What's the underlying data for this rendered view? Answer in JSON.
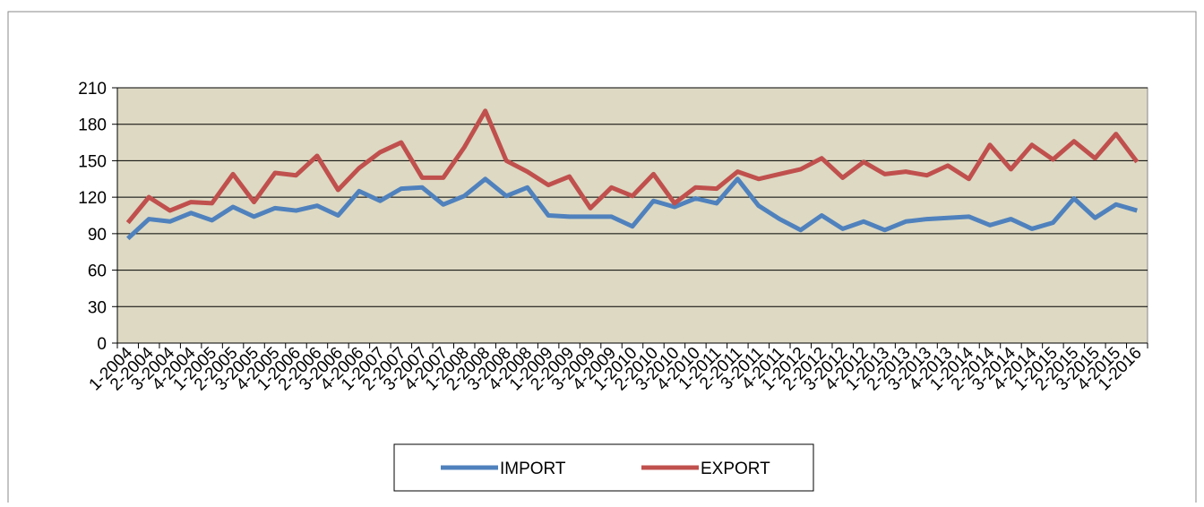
{
  "chart_data": {
    "type": "line",
    "categories": [
      "1-2004",
      "2-2004",
      "3-2004",
      "4-2004",
      "1-2005",
      "2-2005",
      "3-2005",
      "4-2005",
      "1-2006",
      "2-2006",
      "3-2006",
      "4-2006",
      "1-2007",
      "2-2007",
      "3-2007",
      "4-2007",
      "1-2008",
      "2-2008",
      "3-2008",
      "4-2008",
      "1-2009",
      "2-2009",
      "3-2009",
      "4-2009",
      "1-2010",
      "2-2010",
      "3-2010",
      "4-2010",
      "1-2011",
      "2-2011",
      "3-2011",
      "4-2011",
      "1-2012",
      "2-2012",
      "3-2012",
      "4-2012",
      "1-2013",
      "2-2013",
      "3-2013",
      "4-2013",
      "1-2014",
      "2-2014",
      "3-2014",
      "4-2014",
      "1-2015",
      "2-2015",
      "3-2015",
      "4-2015",
      "1-2016"
    ],
    "series": [
      {
        "name": "IMPORT",
        "color": "#4f81bd",
        "values": [
          86,
          102,
          100,
          107,
          101,
          112,
          104,
          111,
          109,
          113,
          105,
          125,
          117,
          127,
          128,
          114,
          121,
          135,
          121,
          128,
          105,
          104,
          104,
          104,
          96,
          117,
          112,
          119,
          115,
          135,
          113,
          102,
          93,
          105,
          94,
          100,
          93,
          100,
          102,
          103,
          104,
          97,
          102,
          94,
          99,
          119,
          103,
          114,
          109
        ]
      },
      {
        "name": "EXPORT",
        "color": "#c0504d",
        "values": [
          99,
          120,
          109,
          116,
          115,
          139,
          116,
          140,
          138,
          154,
          126,
          144,
          157,
          165,
          136,
          136,
          161,
          191,
          150,
          141,
          130,
          137,
          111,
          128,
          121,
          139,
          115,
          128,
          127,
          141,
          135,
          139,
          143,
          152,
          136,
          149,
          139,
          141,
          138,
          146,
          135,
          163,
          143,
          163,
          151,
          166,
          152,
          172,
          149
        ]
      }
    ],
    "ylim": [
      0,
      210
    ],
    "yticks": [
      0,
      30,
      60,
      90,
      120,
      150,
      180,
      210
    ],
    "grid": true
  }
}
